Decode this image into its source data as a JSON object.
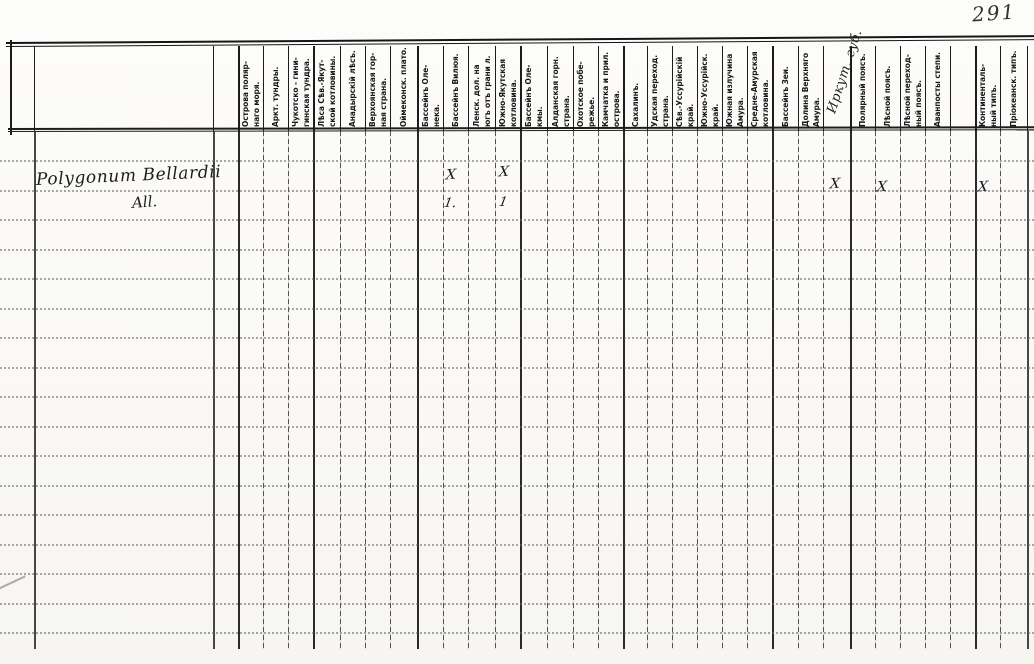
{
  "page": {
    "handwritten_page_number": "291"
  },
  "colors": {
    "paper": "#faf9f6",
    "ink": "#1f1f1f",
    "grid_heavy": "#1f1f1f",
    "grid_dotted": "#636363"
  },
  "species_entry": {
    "name_line1": "Polygonum Bellardii",
    "name_line2": "All."
  },
  "table": {
    "columns": [
      {
        "label": "Острова поляр-\nнаго моря."
      },
      {
        "label": "Аркт. тундры."
      },
      {
        "label": "Чукотско - гини-\nгинская тундра."
      },
      {
        "label": "Лѣса Сѣв.-Якут-\nской котловины."
      },
      {
        "label": "Анадырскій лѣсъ."
      },
      {
        "label": "Верхоянская гор-\nная страна."
      },
      {
        "label": "Оймеконск. плато."
      },
      {
        "label": "Бассейнъ Оле-\nнека."
      },
      {
        "label": "Бассейнъ Вилюя."
      },
      {
        "label": "Ленск. дол. на\nюгъ отъ грани л."
      },
      {
        "label": "Южно-Якутская\nкотловина."
      },
      {
        "label": "Бассейнъ Оле-\nкмы."
      },
      {
        "label": "Алданская горн.\nстрана."
      },
      {
        "label": "Охотское побе-\nрежье."
      },
      {
        "label": "Камчатка и прил.\nострова."
      },
      {
        "label": "Сахалинъ."
      },
      {
        "label": "Удская переход.\nстрана."
      },
      {
        "label": "Сѣв.-Уссурійскій\nкрай."
      },
      {
        "label": "Южно-Уссурійск.\nкрай."
      },
      {
        "label": "Южная излучина\nАмура."
      },
      {
        "label": "Средне-Амурская\nкотловина."
      },
      {
        "label": "Бассейнъ Зеи."
      },
      {
        "label": "Долина Верхняго\nАмура."
      },
      {
        "label": "Иркут. губ.",
        "handwritten": true
      },
      {
        "label": "Полярный поясъ."
      },
      {
        "label": "Лѣсной поясъ."
      },
      {
        "label": "Лѣсной переход-\nный поясъ."
      },
      {
        "label": "Аванпосты степи."
      },
      {
        "label": ""
      },
      {
        "label": "Континенталь-\nный типъ."
      },
      {
        "label": "Пріокеанск. типъ."
      }
    ],
    "marks_row1": [
      {
        "column": "Бассейнъ Вилюя.",
        "symbol": "X"
      },
      {
        "column": "Южно-Якутская котловина.",
        "symbol": "X"
      },
      {
        "column": "Иркут. губ.",
        "symbol": "X"
      },
      {
        "column": "Лѣсной поясъ.",
        "symbol": "X"
      },
      {
        "column": "Континентальный типъ.",
        "symbol": "X"
      }
    ],
    "marks_row2": [
      {
        "column": "Бассейнъ Вилюя.",
        "symbol": "1."
      },
      {
        "column": "Южно-Якутская котловина.",
        "symbol": "1"
      }
    ]
  }
}
